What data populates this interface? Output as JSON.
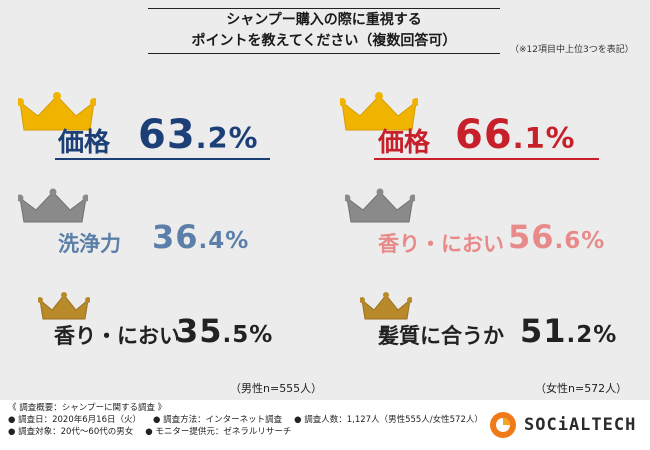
{
  "title": {
    "line1": "シャンプー購入の際に重視する",
    "line2": "ポイントを教えてください（複数回答可）",
    "note": "（※12項目中上位3つを表記）"
  },
  "chart_data": [
    {
      "type": "table",
      "group": "男性",
      "sample_label": "（男性n=555人）",
      "categories": [
        "価格",
        "洗浄力",
        "香り・におい"
      ],
      "values": [
        63.2,
        36.4,
        35.5
      ],
      "value_labels": [
        {
          "int": "63",
          "dec": ".2%"
        },
        {
          "int": "36",
          "dec": ".4%"
        },
        {
          "int": "35",
          "dec": ".5%"
        }
      ],
      "unit": "%"
    },
    {
      "type": "table",
      "group": "女性",
      "sample_label": "（女性n=572人）",
      "categories": [
        "価格",
        "香り・におい",
        "髪質に合うか"
      ],
      "values": [
        66.1,
        56.6,
        51.2
      ],
      "value_labels": [
        {
          "int": "66",
          "dec": ".1%"
        },
        {
          "int": "56",
          "dec": ".6%"
        },
        {
          "int": "51",
          "dec": ".2%"
        }
      ],
      "unit": "%"
    }
  ],
  "colors": {
    "male_rank1": "#1c3f77",
    "male_rank2": "#5b7fa8",
    "male_rank3": "#222222",
    "female_rank1": "#c8202a",
    "female_rank2": "#e88a8a",
    "female_rank3": "#222222",
    "crown_gold": "#f0b400",
    "crown_silver": "#8a8a8a",
    "crown_bronze": "#b88a2a"
  },
  "footer": {
    "heading": "《 調査概要：シャンプーに関する調査 》",
    "date": "● 調査日：2020年6月16日（火）",
    "method": "● 調査方法：インターネット調査",
    "count": "● 調査人数：1,127人（男性555人/女性572人）",
    "target": "● 調査対象：20代〜60代の男女",
    "provider": "● モニター提供元：ゼネラルリサーチ"
  },
  "logo": {
    "text": "SOCiALTECH"
  }
}
